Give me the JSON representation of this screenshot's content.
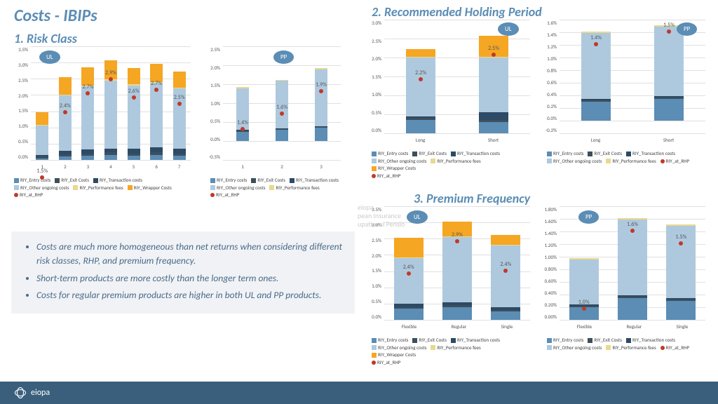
{
  "title": "Costs - IBIPs",
  "sections": {
    "s1": "1. Risk Class",
    "s2": "2. Recommended Holding Period",
    "s3": "3. Premium Frequency"
  },
  "badges": {
    "ul": "UL",
    "pp": "PP"
  },
  "colors": {
    "entry": "#5b8db5",
    "exit": "#3d4f5c",
    "trans": "#2d4a66",
    "ongoing": "#aec9de",
    "perf": "#e8d98f",
    "wrapper": "#f5a623",
    "rhp": "#c0392b",
    "grid": "#e0e0e0",
    "bg": "#ffffff"
  },
  "legend_ul": [
    "RIY_Entry costs",
    "RIY_Exit Costs",
    "RIY_Transaction costs",
    "RIY_Other ongoing costs",
    "RIY_Performance fees",
    "RIY_Wrapper Costs",
    "RIY_at_RHP"
  ],
  "legend_pp": [
    "RIY_Entry costs",
    "RIY_Exit Costs",
    "RIY_Transaction costs",
    "RIY_Other ongoing costs",
    "RIY_Performance fees",
    "RIY_at_RHP"
  ],
  "chart1_ul": {
    "ymax": 3.5,
    "ystep": 0.5,
    "cats": [
      "1",
      "2",
      "3",
      "4",
      "5",
      "6",
      "7"
    ],
    "rhp": [
      1.5,
      2.4,
      2.7,
      2.9,
      2.6,
      2.7,
      2.5
    ],
    "stacks": [
      [
        0.05,
        0.05,
        0.05,
        0.9,
        0.02,
        0.4
      ],
      [
        0.1,
        0.08,
        0.1,
        1.7,
        0.03,
        0.55
      ],
      [
        0.12,
        0.08,
        0.12,
        1.95,
        0.03,
        0.55
      ],
      [
        0.15,
        0.08,
        0.12,
        2.1,
        0.03,
        0.6
      ],
      [
        0.12,
        0.08,
        0.15,
        1.95,
        0.03,
        0.5
      ],
      [
        0.15,
        0.08,
        0.15,
        2.0,
        0.03,
        0.55
      ],
      [
        0.12,
        0.08,
        0.15,
        1.85,
        0.03,
        0.5
      ]
    ]
  },
  "chart1_pp": {
    "ymax": 2.5,
    "ymin": -0.5,
    "ystep": 0.5,
    "cats": [
      "1",
      "2",
      "3"
    ],
    "rhp": [
      1.4,
      1.6,
      1.9
    ],
    "stacks": [
      [
        0.25,
        0.02,
        0.02,
        1.1,
        0.03
      ],
      [
        0.3,
        0.02,
        0.02,
        1.25,
        0.03
      ],
      [
        0.35,
        0.02,
        0.02,
        1.5,
        0.03
      ]
    ]
  },
  "chart2_ul": {
    "ymax": 3.0,
    "ystep": 0.5,
    "cats": [
      "Long",
      "Short"
    ],
    "rhp": [
      2.2,
      2.5
    ],
    "stacks": [
      [
        0.35,
        0.05,
        0.05,
        1.55,
        0.02,
        0.2
      ],
      [
        0.3,
        0.05,
        0.2,
        1.45,
        0.02,
        0.55
      ]
    ]
  },
  "chart2_pp": {
    "ymax": 1.6,
    "ymin": -0.2,
    "ystep": 0.2,
    "cats": [
      "Long",
      "Short"
    ],
    "rhp": [
      1.4,
      1.5
    ],
    "stacks": [
      [
        0.3,
        0.02,
        0.02,
        1.05,
        0.02
      ],
      [
        0.35,
        0.02,
        0.02,
        1.1,
        0.02
      ]
    ]
  },
  "chart3_ul": {
    "ymax": 3.5,
    "ystep": 0.5,
    "cats": [
      "Flexible",
      "Regular",
      "Single"
    ],
    "rhp": [
      2.4,
      2.9,
      2.4
    ],
    "stacks": [
      [
        0.35,
        0.05,
        0.1,
        1.4,
        0.02,
        0.6
      ],
      [
        0.4,
        0.05,
        0.1,
        2.0,
        0.02,
        0.45
      ],
      [
        0.25,
        0.05,
        0.1,
        1.9,
        0.02,
        0.3
      ]
    ]
  },
  "chart3_pp": {
    "ymax": 1.8,
    "ystep": 0.2,
    "cats": [
      "Flexible",
      "Regular",
      "Single"
    ],
    "rhp": [
      1.0,
      1.6,
      1.5
    ],
    "stacks": [
      [
        0.2,
        0.02,
        0.02,
        0.72,
        0.02
      ],
      [
        0.35,
        0.02,
        0.02,
        1.2,
        0.02
      ],
      [
        0.3,
        0.02,
        0.02,
        1.15,
        0.02
      ]
    ]
  },
  "bullets": [
    "Costs are much more homogeneous than net returns when considering different risk classes, RHP, and premium frequency.",
    "Short-term products are more costly than the longer term ones.",
    "Costs for regular premium products are higher in both UL and PP products."
  ],
  "footer": "eiopa",
  "watermark": [
    "eiopa",
    "pean Insurance",
    "upational Pensio"
  ]
}
